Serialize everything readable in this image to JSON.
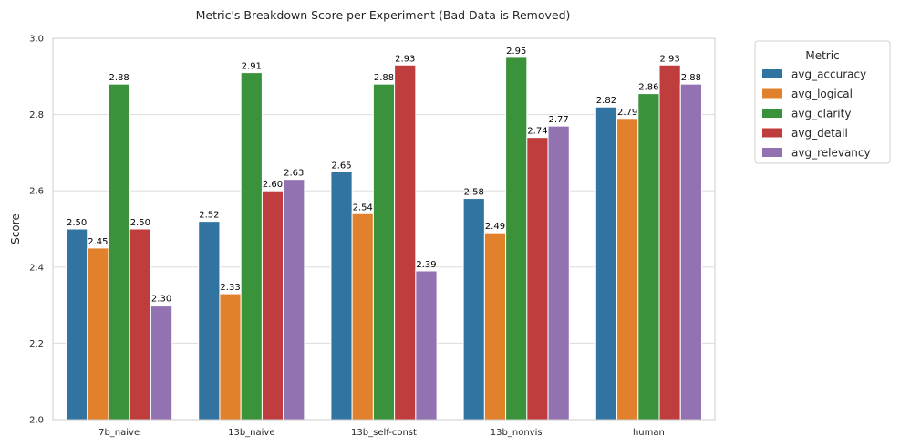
{
  "chart_data": {
    "type": "bar",
    "title": "Metric's Breakdown Score per Experiment (Bad Data is Removed)",
    "xlabel": "",
    "ylabel": "Score",
    "ylim": [
      2.0,
      3.0
    ],
    "yticks": [
      "2.0",
      "2.2",
      "2.4",
      "2.6",
      "2.8",
      "3.0"
    ],
    "grid": true,
    "legend_title": "Metric",
    "legend_position": "outside-top-right",
    "categories": [
      "7b_naive",
      "13b_naive",
      "13b_self-const",
      "13b_nonvis",
      "human"
    ],
    "series": [
      {
        "name": "avg_accuracy",
        "color": "#3274a1",
        "values": [
          2.5,
          2.52,
          2.65,
          2.58,
          2.82
        ],
        "labels": [
          "2.50",
          "2.52",
          "2.65",
          "2.58",
          "2.82"
        ]
      },
      {
        "name": "avg_logical",
        "color": "#e1812c",
        "values": [
          2.45,
          2.33,
          2.54,
          2.49,
          2.79
        ],
        "labels": [
          "2.45",
          "2.33",
          "2.54",
          "2.49",
          "2.79"
        ]
      },
      {
        "name": "avg_clarity",
        "color": "#3a923a",
        "values": [
          2.88,
          2.91,
          2.88,
          2.95,
          2.855
        ],
        "labels": [
          "2.88",
          "2.91",
          "2.88",
          "2.95",
          "2.86"
        ]
      },
      {
        "name": "avg_detail",
        "color": "#c03d3e",
        "values": [
          2.5,
          2.6,
          2.93,
          2.74,
          2.93
        ],
        "labels": [
          "2.50",
          "2.60",
          "2.93",
          "2.74",
          "2.93"
        ]
      },
      {
        "name": "avg_relevancy",
        "color": "#9372b2",
        "values": [
          2.3,
          2.63,
          2.39,
          2.77,
          2.88
        ],
        "labels": [
          "2.30",
          "2.63",
          "2.39",
          "2.77",
          "2.88"
        ]
      }
    ]
  }
}
